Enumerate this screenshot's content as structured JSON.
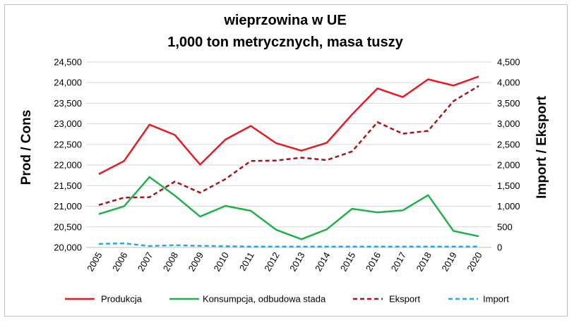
{
  "chart_data": {
    "type": "line",
    "title": [
      "wieprzowina w UE",
      "1,000 ton metrycznych, masa tuszy"
    ],
    "ylabel_left": "Prod / Cons",
    "ylabel_right": "Import / Eksport",
    "categories": [
      "2005",
      "2006",
      "2007",
      "2008",
      "2009",
      "2010",
      "2011",
      "2012",
      "2013",
      "2014",
      "2015",
      "2016",
      "2017",
      "2018",
      "2019",
      "2020"
    ],
    "y_left": {
      "min": 20000,
      "max": 24500,
      "step": 500,
      "ticks": [
        "20,000",
        "20,500",
        "21,000",
        "21,500",
        "22,000",
        "22,500",
        "23,000",
        "23,500",
        "24,000",
        "24,500"
      ]
    },
    "y_right": {
      "min": 0,
      "max": 4500,
      "step": 500,
      "ticks": [
        "0",
        "500",
        "1,000",
        "1,500",
        "2,000",
        "2,500",
        "3,000",
        "3,500",
        "4,000",
        "4,500"
      ]
    },
    "grid": "horizontal",
    "legend_position": "bottom",
    "series": [
      {
        "name": "Produkcja",
        "axis": "left",
        "style": "solid",
        "color": "#e8191f",
        "values": [
          21780,
          22100,
          22980,
          22730,
          22010,
          22620,
          22950,
          22530,
          22350,
          22540,
          23230,
          23860,
          23650,
          24080,
          23930,
          24150
        ]
      },
      {
        "name": "Konsumpcja, odbudowa stada",
        "axis": "left",
        "style": "solid",
        "color": "#1fb14a",
        "values": [
          20810,
          21000,
          21710,
          21260,
          20750,
          21010,
          20890,
          20430,
          20200,
          20440,
          20940,
          20850,
          20900,
          21270,
          20400,
          20270
        ]
      },
      {
        "name": "Eksport",
        "axis": "right",
        "style": "dashed",
        "color": "#a3161c",
        "values": [
          1030,
          1210,
          1220,
          1600,
          1330,
          1660,
          2100,
          2110,
          2180,
          2120,
          2330,
          3040,
          2760,
          2830,
          3550,
          3920
        ]
      },
      {
        "name": "Import",
        "axis": "right",
        "style": "dashed",
        "color": "#2aa7df",
        "values": [
          85,
          100,
          35,
          55,
          40,
          30,
          20,
          20,
          20,
          20,
          20,
          20,
          20,
          20,
          20,
          20
        ]
      }
    ]
  }
}
